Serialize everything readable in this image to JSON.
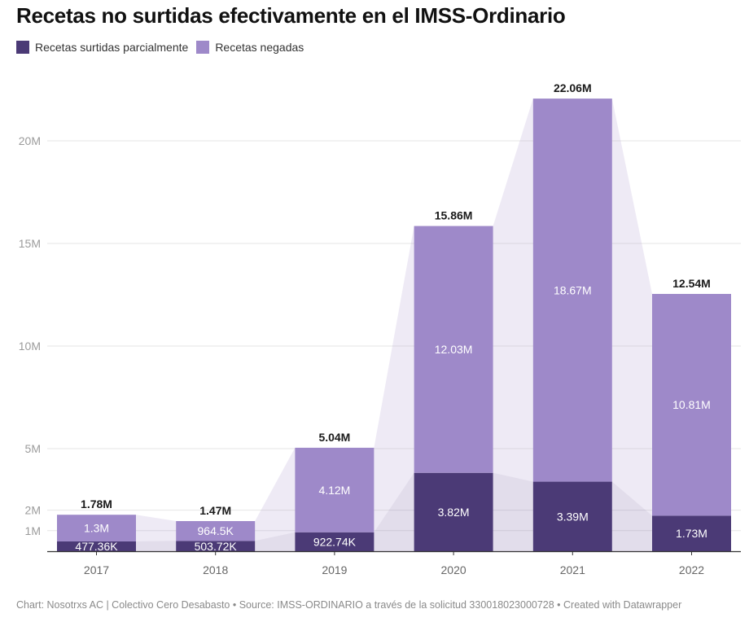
{
  "header": {
    "title": "Recetas no surtidas efectivamente en el IMSS-Ordinario"
  },
  "legend": [
    {
      "label": "Recetas surtidas parcialmente",
      "color": "#4b3a76"
    },
    {
      "label": "Recetas negadas",
      "color": "#9e89c9"
    }
  ],
  "footer": {
    "text": "Chart: Nosotrxs AC | Colectivo Cero Desabasto • Source: IMSS-ORDINARIO a través de la solicitud 330018023000728 • Created with Datawrapper"
  },
  "chart_data": {
    "type": "bar",
    "stacked": true,
    "title": "Recetas no surtidas efectivamente en el IMSS-Ordinario",
    "xlabel": "",
    "ylabel": "",
    "categories": [
      "2017",
      "2018",
      "2019",
      "2020",
      "2021",
      "2022"
    ],
    "series": [
      {
        "name": "Recetas surtidas parcialmente",
        "color": "#4b3a76",
        "values": [
          477360,
          503720,
          922740,
          3820000,
          3390000,
          1730000
        ],
        "labels": [
          "477.36K",
          "503.72K",
          "922.74K",
          "3.82M",
          "3.39M",
          "1.73M"
        ]
      },
      {
        "name": "Recetas negadas",
        "color": "#9e89c9",
        "values": [
          1300000,
          964500,
          4120000,
          12030000,
          18670000,
          10810000
        ],
        "labels": [
          "1.3M",
          "964.5K",
          "4.12M",
          "12.03M",
          "18.67M",
          "10.81M"
        ]
      }
    ],
    "totals": [
      1780000,
      1470000,
      5040000,
      15860000,
      22060000,
      12540000
    ],
    "total_labels": [
      "1.78M",
      "1.47M",
      "5.04M",
      "15.86M",
      "22.06M",
      "12.54M"
    ],
    "yticks": [
      {
        "value": 1000000,
        "label": "1M"
      },
      {
        "value": 2000000,
        "label": "2M"
      },
      {
        "value": 5000000,
        "label": "5M"
      },
      {
        "value": 10000000,
        "label": "10M"
      },
      {
        "value": 15000000,
        "label": "15M"
      },
      {
        "value": 20000000,
        "label": "20M"
      }
    ],
    "ylim": [
      0,
      22060000
    ],
    "grid": true,
    "connector_areas": true,
    "legend_position": "top-left"
  }
}
